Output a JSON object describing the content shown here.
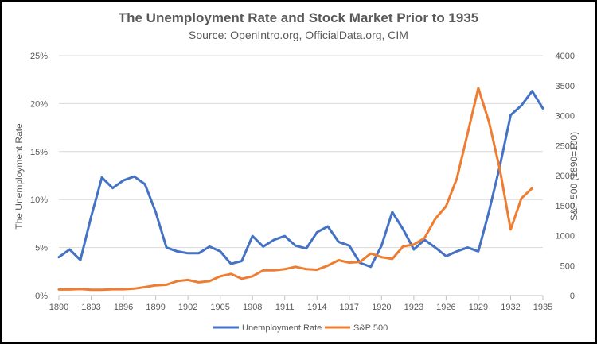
{
  "chart_data": {
    "type": "line",
    "title": "The Unemployment Rate  and Stock Market Prior to 1935",
    "subtitle": "Source: OpenIntro.org, OfficialData.org, CIM",
    "xlabel": "",
    "ylabel_left": "The Unemployment Rate",
    "ylabel_right": "S&P 500 (1890=100)",
    "xlim": [
      1890,
      1935
    ],
    "ylim_left": [
      0,
      25
    ],
    "ylim_right": [
      0,
      4000
    ],
    "x_ticks": [
      "1890",
      "1893",
      "1896",
      "1899",
      "1902",
      "1905",
      "1908",
      "1911",
      "1914",
      "1917",
      "1920",
      "1923",
      "1926",
      "1929",
      "1932",
      "1935"
    ],
    "y_left_ticks": [
      "0%",
      "5%",
      "10%",
      "15%",
      "20%",
      "25%"
    ],
    "y_right_ticks": [
      "0",
      "500",
      "1000",
      "1500",
      "2000",
      "2500",
      "3000",
      "3500",
      "4000"
    ],
    "grid": true,
    "legend_position": "bottom",
    "series": [
      {
        "name": "Unemployment Rate",
        "axis": "left",
        "color": "#4472c4",
        "x": [
          1890,
          1891,
          1892,
          1893,
          1894,
          1895,
          1896,
          1897,
          1898,
          1899,
          1900,
          1901,
          1902,
          1903,
          1904,
          1905,
          1906,
          1907,
          1908,
          1909,
          1910,
          1911,
          1912,
          1913,
          1914,
          1915,
          1916,
          1917,
          1918,
          1919,
          1920,
          1921,
          1922,
          1923,
          1924,
          1925,
          1926,
          1927,
          1928,
          1929,
          1930,
          1931,
          1932,
          1933,
          1934,
          1935
        ],
        "values": [
          4.0,
          4.8,
          3.7,
          8.2,
          12.3,
          11.2,
          12.0,
          12.4,
          11.6,
          8.7,
          5.0,
          4.6,
          4.4,
          4.4,
          5.1,
          4.6,
          3.3,
          3.6,
          6.2,
          5.1,
          5.8,
          6.2,
          5.2,
          4.9,
          6.6,
          7.2,
          5.6,
          5.2,
          3.4,
          3.0,
          5.2,
          8.7,
          6.9,
          4.8,
          5.8,
          5.0,
          4.1,
          4.6,
          5.0,
          4.6,
          8.8,
          13.5,
          18.8,
          19.8,
          21.3,
          19.5
        ]
      },
      {
        "name": "S&P 500",
        "axis": "right",
        "color": "#ed7d31",
        "x": [
          1890,
          1891,
          1892,
          1893,
          1894,
          1895,
          1896,
          1897,
          1898,
          1899,
          1900,
          1901,
          1902,
          1903,
          1904,
          1905,
          1906,
          1907,
          1908,
          1909,
          1910,
          1911,
          1912,
          1913,
          1914,
          1915,
          1916,
          1917,
          1918,
          1919,
          1920,
          1921,
          1922,
          1923,
          1924,
          1925,
          1926,
          1927,
          1928,
          1929,
          1930,
          1931,
          1932,
          1933,
          1934
        ],
        "values": [
          100,
          100,
          110,
          95,
          95,
          105,
          105,
          115,
          140,
          170,
          180,
          240,
          260,
          220,
          240,
          320,
          360,
          280,
          320,
          420,
          420,
          440,
          480,
          440,
          430,
          500,
          590,
          550,
          560,
          700,
          640,
          610,
          820,
          850,
          960,
          1280,
          1490,
          1950,
          2700,
          3460,
          2890,
          2100,
          1100,
          1620,
          1790
        ]
      }
    ]
  }
}
